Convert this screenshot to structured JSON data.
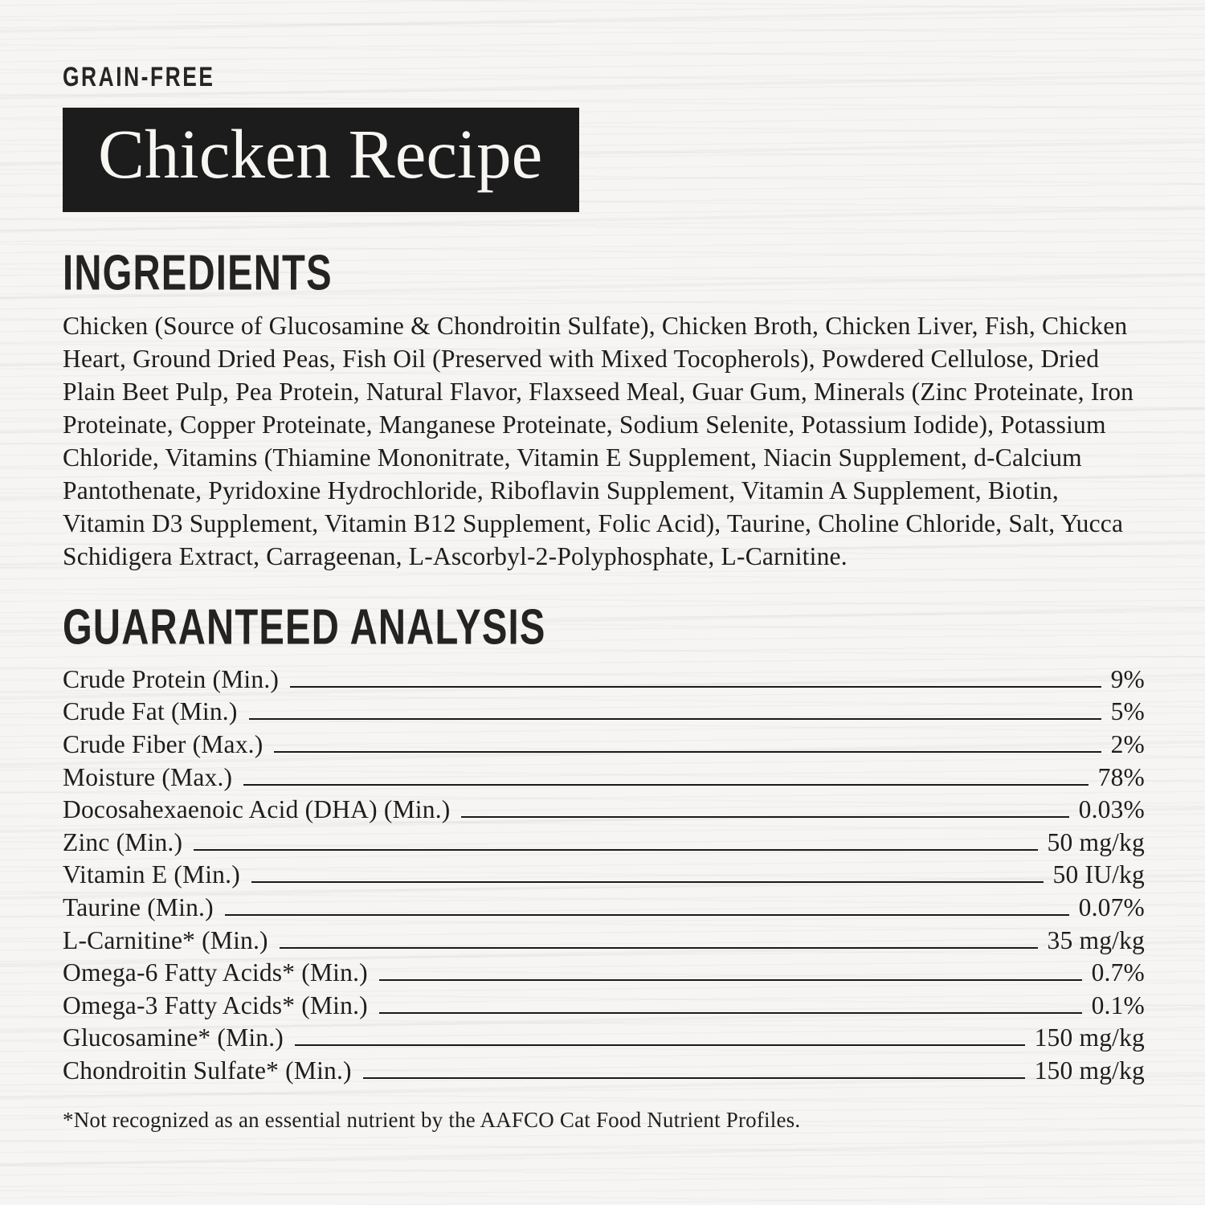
{
  "badge": "GRAIN-FREE",
  "title": "Chicken Recipe",
  "ingredients": {
    "heading": "INGREDIENTS",
    "text": "Chicken (Source of Glucosamine & Chondroitin Sulfate), Chicken Broth, Chicken Liver, Fish, Chicken Heart, Ground Dried Peas, Fish Oil (Preserved with Mixed Tocopherols), Powdered Cellulose, Dried Plain Beet Pulp, Pea Protein, Natural Flavor, Flaxseed Meal, Guar Gum, Minerals (Zinc Proteinate, Iron Proteinate, Copper Proteinate, Manganese Proteinate, Sodium Selenite, Potassium Iodide), Potassium Chloride, Vitamins (Thiamine Mononitrate, Vitamin E Supplement, Niacin Supplement, d-Calcium Pantothenate, Pyridoxine Hydrochloride, Riboflavin Supplement, Vitamin A Supplement, Biotin, Vitamin D3 Supplement, Vitamin B12 Supplement, Folic Acid), Taurine, Choline Chloride, Salt, Yucca Schidigera Extract, Carrageenan, L-Ascorbyl-2-Polyphosphate, L-Carnitine."
  },
  "analysis": {
    "heading": "GUARANTEED ANALYSIS",
    "rows": [
      {
        "label": "Crude Protein (Min.)",
        "value": "9%"
      },
      {
        "label": "Crude Fat (Min.)",
        "value": "5%"
      },
      {
        "label": "Crude Fiber (Max.)",
        "value": "2%"
      },
      {
        "label": "Moisture (Max.)",
        "value": "78%"
      },
      {
        "label": "Docosahexaenoic Acid (DHA) (Min.)",
        "value": "0.03%"
      },
      {
        "label": "Zinc (Min.)",
        "value": "50 mg/kg"
      },
      {
        "label": "Vitamin E (Min.)",
        "value": "50 IU/kg"
      },
      {
        "label": "Taurine (Min.)",
        "value": "0.07%"
      },
      {
        "label": "L-Carnitine* (Min.)",
        "value": "35 mg/kg"
      },
      {
        "label": "Omega-6 Fatty Acids* (Min.)",
        "value": "0.7%"
      },
      {
        "label": "Omega-3 Fatty Acids* (Min.)",
        "value": "0.1%"
      },
      {
        "label": "Glucosamine* (Min.)",
        "value": "150 mg/kg"
      },
      {
        "label": "Chondroitin Sulfate* (Min.)",
        "value": "150 mg/kg"
      }
    ]
  },
  "footnote": "*Not recognized as an essential nutrient by the AAFCO Cat Food Nutrient Profiles.",
  "colors": {
    "background": "#f6f5f3",
    "banner_bg": "#1d1c1c",
    "banner_text": "#f7f6f3",
    "text": "#1e1d1b"
  }
}
